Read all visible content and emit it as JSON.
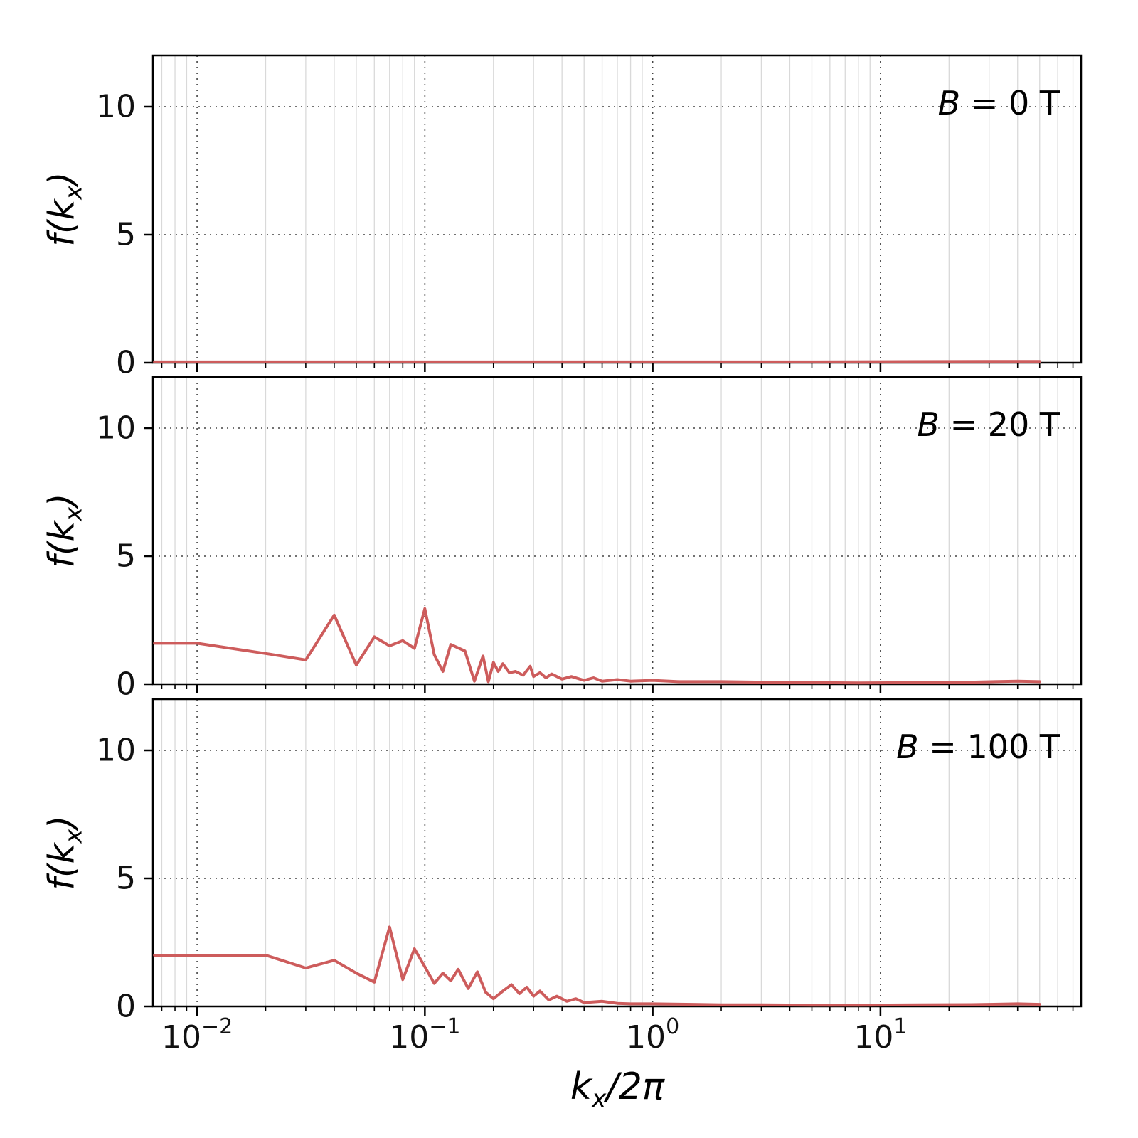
{
  "figure": {
    "background": "#ffffff",
    "line_color": "#cd5c5c",
    "grid_major_color": "#444444",
    "grid_minor_color": "#d9d9d9",
    "spine_color": "#000000"
  },
  "axes": {
    "xlabel": {
      "base": "k",
      "sub": "x",
      "rest": "/2π"
    },
    "ylabel": {
      "pre": "f(k",
      "sub": "x",
      "post": ")"
    },
    "x_scale": "log",
    "xlim": [
      0.0064,
      76
    ],
    "ylim": [
      0,
      12
    ],
    "grid": true,
    "x_ticks": [
      {
        "value": 0.01,
        "base": "10",
        "exp": "−2"
      },
      {
        "value": 0.1,
        "base": "10",
        "exp": "−1"
      },
      {
        "value": 1,
        "base": "10",
        "exp": "0"
      },
      {
        "value": 10,
        "base": "10",
        "exp": "1"
      }
    ],
    "y_ticks": [
      {
        "value": 0,
        "label": "0"
      },
      {
        "value": 5,
        "label": "5"
      },
      {
        "value": 10,
        "label": "10"
      }
    ]
  },
  "chart_data": [
    {
      "type": "line",
      "name": "B = 0 T",
      "annotation": {
        "sym": "B",
        "rest": " = 0 T"
      },
      "x": [
        0.0065,
        0.01,
        0.05,
        0.1,
        0.5,
        1,
        5,
        10,
        30,
        50
      ],
      "y": [
        0.03,
        0.03,
        0.03,
        0.03,
        0.03,
        0.03,
        0.03,
        0.04,
        0.05,
        0.05
      ]
    },
    {
      "type": "line",
      "name": "B = 20 T",
      "annotation": {
        "sym": "B",
        "rest": " = 20 T"
      },
      "x": [
        0.0065,
        0.01,
        0.02,
        0.03,
        0.04,
        0.05,
        0.06,
        0.07,
        0.08,
        0.09,
        0.1,
        0.11,
        0.12,
        0.13,
        0.15,
        0.165,
        0.18,
        0.19,
        0.2,
        0.21,
        0.22,
        0.235,
        0.25,
        0.27,
        0.29,
        0.3,
        0.32,
        0.34,
        0.36,
        0.4,
        0.44,
        0.5,
        0.55,
        0.6,
        0.7,
        0.8,
        1.0,
        1.3,
        2,
        3,
        5,
        8,
        15,
        25,
        40,
        50
      ],
      "y": [
        1.6,
        1.6,
        1.2,
        0.95,
        2.7,
        0.75,
        1.85,
        1.5,
        1.7,
        1.4,
        2.95,
        1.15,
        0.5,
        1.55,
        1.3,
        0.12,
        1.1,
        0.1,
        0.85,
        0.5,
        0.8,
        0.45,
        0.5,
        0.35,
        0.7,
        0.3,
        0.45,
        0.25,
        0.4,
        0.2,
        0.3,
        0.15,
        0.25,
        0.12,
        0.18,
        0.12,
        0.15,
        0.1,
        0.1,
        0.08,
        0.06,
        0.05,
        0.06,
        0.08,
        0.12,
        0.1
      ]
    },
    {
      "type": "line",
      "name": "B = 100 T",
      "annotation": {
        "sym": "B",
        "rest": " = 100 T"
      },
      "x": [
        0.0065,
        0.01,
        0.02,
        0.03,
        0.04,
        0.05,
        0.06,
        0.07,
        0.08,
        0.09,
        0.1,
        0.11,
        0.12,
        0.13,
        0.14,
        0.155,
        0.17,
        0.185,
        0.2,
        0.22,
        0.24,
        0.26,
        0.28,
        0.3,
        0.32,
        0.35,
        0.38,
        0.42,
        0.46,
        0.5,
        0.6,
        0.7,
        0.8,
        1.0,
        1.5,
        2,
        3,
        5,
        8,
        15,
        25,
        40,
        50
      ],
      "y": [
        2.0,
        2.0,
        2.0,
        1.5,
        1.8,
        1.3,
        0.95,
        3.1,
        1.05,
        2.25,
        1.55,
        0.9,
        1.3,
        1.0,
        1.45,
        0.7,
        1.35,
        0.55,
        0.3,
        0.6,
        0.85,
        0.5,
        0.75,
        0.4,
        0.6,
        0.25,
        0.4,
        0.2,
        0.3,
        0.15,
        0.2,
        0.12,
        0.1,
        0.1,
        0.08,
        0.06,
        0.06,
        0.05,
        0.05,
        0.06,
        0.07,
        0.1,
        0.08
      ]
    }
  ]
}
